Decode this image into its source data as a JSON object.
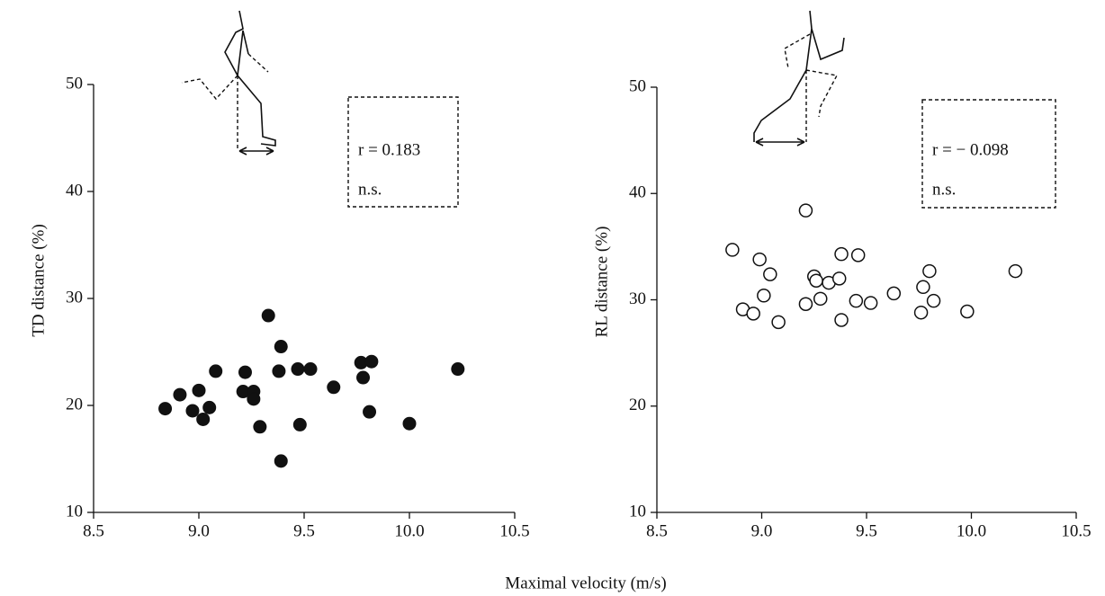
{
  "xlabel": "Maximal velocity (m/s)",
  "chart_data": [
    {
      "type": "scatter",
      "ylabel": "TD distance (%)",
      "annotations": [
        "r = 0.183",
        "n.s."
      ],
      "marker": "filled",
      "color": "#111111",
      "xlim": [
        8.5,
        10.5
      ],
      "xticks": [
        8.5,
        {
          "value": 9,
          "label": "9.0"
        },
        9.5,
        {
          "value": 10,
          "label": "10.0"
        },
        10.5
      ],
      "ylim": [
        10,
        50
      ],
      "yticks": [
        10,
        20,
        30,
        40,
        50
      ],
      "series": [
        {
          "x": [
            8.84,
            8.91,
            8.97,
            9.0,
            9.02,
            9.05,
            9.08,
            9.22,
            9.21,
            9.26,
            9.26,
            9.29,
            9.33,
            9.39,
            9.38,
            9.39,
            9.47,
            9.53,
            9.48,
            9.64,
            9.77,
            9.78,
            9.82,
            9.81,
            10.0,
            10.23
          ],
          "values": [
            19.7,
            21.0,
            19.5,
            21.4,
            18.7,
            19.8,
            23.2,
            23.1,
            21.3,
            21.3,
            20.6,
            18.0,
            28.4,
            25.5,
            23.2,
            14.8,
            23.4,
            23.4,
            18.2,
            21.7,
            24.0,
            22.6,
            24.1,
            19.4,
            18.3,
            23.4
          ]
        }
      ]
    },
    {
      "type": "scatter",
      "ylabel": "RL distance (%)",
      "annotations": [
        "r = − 0.098",
        "n.s."
      ],
      "marker": "open",
      "color": "#111111",
      "xlim": [
        8.5,
        10.5
      ],
      "xticks": [
        8.5,
        {
          "value": 9,
          "label": "9.0"
        },
        9.5,
        {
          "value": 10,
          "label": "10.0"
        },
        10.5
      ],
      "ylim": [
        10,
        50
      ],
      "yticks": [
        10,
        20,
        30,
        40,
        50
      ],
      "series": [
        {
          "x": [
            8.86,
            8.99,
            9.04,
            9.01,
            8.91,
            8.96,
            9.08,
            9.21,
            9.25,
            9.26,
            9.32,
            9.28,
            9.21,
            9.37,
            9.38,
            9.38,
            9.46,
            9.45,
            9.52,
            9.63,
            9.76,
            9.77,
            9.8,
            9.82,
            9.98,
            10.21
          ],
          "values": [
            34.7,
            33.8,
            32.4,
            30.4,
            29.1,
            28.7,
            27.9,
            38.4,
            32.2,
            31.8,
            31.6,
            30.1,
            29.6,
            32.0,
            34.3,
            28.1,
            34.2,
            29.9,
            29.7,
            30.6,
            28.8,
            31.2,
            32.7,
            29.9,
            28.9,
            32.7
          ]
        }
      ]
    }
  ]
}
